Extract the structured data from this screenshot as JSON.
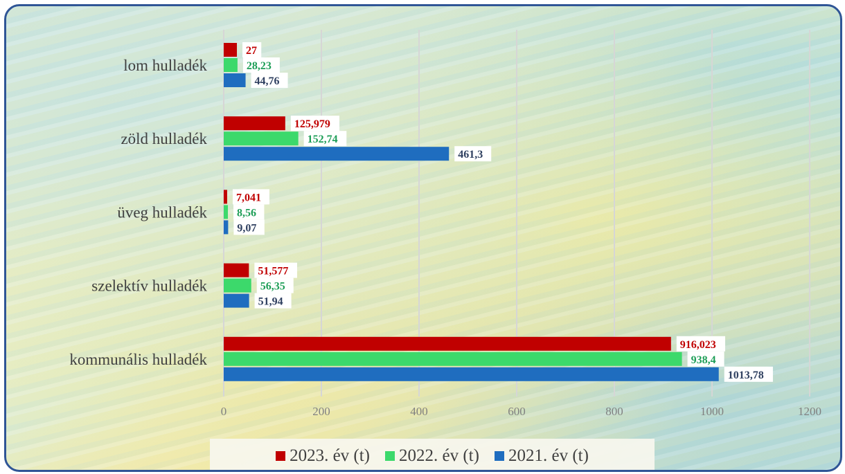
{
  "chart_data": {
    "type": "bar",
    "orientation": "horizontal",
    "categories": [
      "lom hulladék",
      "zöld hulladék",
      "üveg hulladék",
      "szelektív hulladék",
      "kommunális hulladék"
    ],
    "series": [
      {
        "name": "2023. év (t)",
        "color": "#c00000",
        "values": [
          27,
          125.979,
          7.041,
          51.577,
          916.023
        ],
        "labels": [
          "27",
          "125,979",
          "7,041",
          "51,577",
          "916,023"
        ]
      },
      {
        "name": "2022. év (t)",
        "color": "#3cd96b",
        "values": [
          28.23,
          152.74,
          8.56,
          56.35,
          938.4
        ],
        "labels": [
          "28,23",
          "152,74",
          "8,56",
          "56,35",
          "938,4"
        ]
      },
      {
        "name": "2021. év (t)",
        "color": "#1f6dbf",
        "values": [
          44.76,
          461.3,
          9.07,
          51.94,
          1013.78
        ],
        "labels": [
          "44,76",
          "461,3",
          "9,07",
          "51,94",
          "1013,78"
        ]
      }
    ],
    "xlim": [
      0,
      1200
    ],
    "xticks": [
      "0",
      "200",
      "400",
      "600",
      "800",
      "1000",
      "1200"
    ],
    "grid": true,
    "legend_position": "bottom",
    "label_colors": [
      "#c00000",
      "#1e9e57",
      "#2f4060"
    ]
  }
}
